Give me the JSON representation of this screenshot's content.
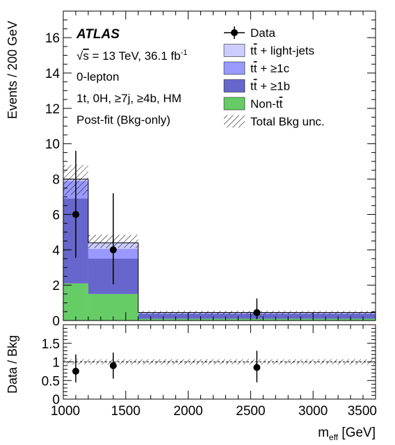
{
  "chart_data": [
    {
      "type": "bar",
      "stacked": true,
      "ylabel": "Events / 200 GeV",
      "xlim": [
        1000,
        3500
      ],
      "ylim": [
        0,
        17.5
      ],
      "y_ticks": [
        0,
        2,
        4,
        6,
        8,
        10,
        12,
        14,
        16
      ],
      "bin_edges": [
        1000,
        1200,
        1600,
        3500
      ],
      "annotations": {
        "experiment": "ATLAS",
        "energy_prefix": "s",
        "energy_text": " = 13 TeV, 36.1 fb",
        "lumi_exp": "-1",
        "line3": "0-lepton",
        "line4": "1t, 0H, ≥7j, ≥4b, HM",
        "line5": "Post-fit (Bkg-only)"
      },
      "legend_position": "top-right",
      "legend": [
        {
          "key": "data",
          "label": "Data",
          "marker": "point"
        },
        {
          "key": "light",
          "label_a": "t",
          "label_b": "t",
          "label_rest": " + light-jets",
          "color": "#ccccff"
        },
        {
          "key": "c",
          "label_a": "t",
          "label_b": "t",
          "label_rest": " + ≥1c",
          "color": "#9999ff"
        },
        {
          "key": "b",
          "label_a": "t",
          "label_b": "t",
          "label_rest": " + ≥1b",
          "color": "#6666cc"
        },
        {
          "key": "nontt",
          "label_pre": "Non-",
          "label_a": "t",
          "label_b": "t",
          "color": "#66cc66"
        },
        {
          "key": "unc",
          "label": "Total Bkg unc.",
          "marker": "hatch"
        }
      ],
      "series": [
        {
          "key": "nontt",
          "color": "#66cc66",
          "values": [
            2.1,
            1.5,
            0.1
          ]
        },
        {
          "key": "b",
          "color": "#6666cc",
          "values": [
            4.8,
            2.0,
            0.28
          ]
        },
        {
          "key": "c",
          "color": "#9999ff",
          "values": [
            1.0,
            0.55,
            0.04
          ]
        },
        {
          "key": "light",
          "color": "#ccccff",
          "values": [
            0.1,
            0.35,
            0.03
          ]
        }
      ],
      "total_unc": [
        [
          7.1,
          8.8
        ],
        [
          4.1,
          4.85
        ],
        [
          0.35,
          0.55
        ]
      ],
      "data_points": [
        {
          "x": 1100,
          "y": 6,
          "err": [
            2.45,
            3.6
          ]
        },
        {
          "x": 1400,
          "y": 4,
          "err": [
            1.95,
            3.2
          ]
        },
        {
          "x": 2550,
          "y": 0.45,
          "err": [
            0.37,
            0.8
          ]
        }
      ]
    },
    {
      "type": "scatter",
      "ylabel": "Data / Bkg",
      "xlabel_main": "m",
      "xlabel_sub": "eff",
      "xlabel_unit": " [GeV]",
      "xlim": [
        1000,
        3500
      ],
      "ylim": [
        0,
        2
      ],
      "y_ticks": [
        0,
        0.5,
        1,
        1.5
      ],
      "y_tick_labels": [
        "0",
        "0.5",
        "1",
        "1.5"
      ],
      "x_ticks": [
        1000,
        1500,
        2000,
        2500,
        3000,
        3500
      ],
      "x_tick_labels": [
        "1000",
        "1500",
        "2000",
        "2500",
        "3000",
        "3500"
      ],
      "unc_band": [
        0.93,
        1.07
      ],
      "points": [
        {
          "x": 1100,
          "y": 0.75,
          "err": [
            0.3,
            0.45
          ]
        },
        {
          "x": 1400,
          "y": 0.9,
          "err": [
            0.35,
            0.35
          ]
        },
        {
          "x": 2550,
          "y": 0.85,
          "err": [
            0.4,
            0.45
          ]
        }
      ]
    }
  ]
}
